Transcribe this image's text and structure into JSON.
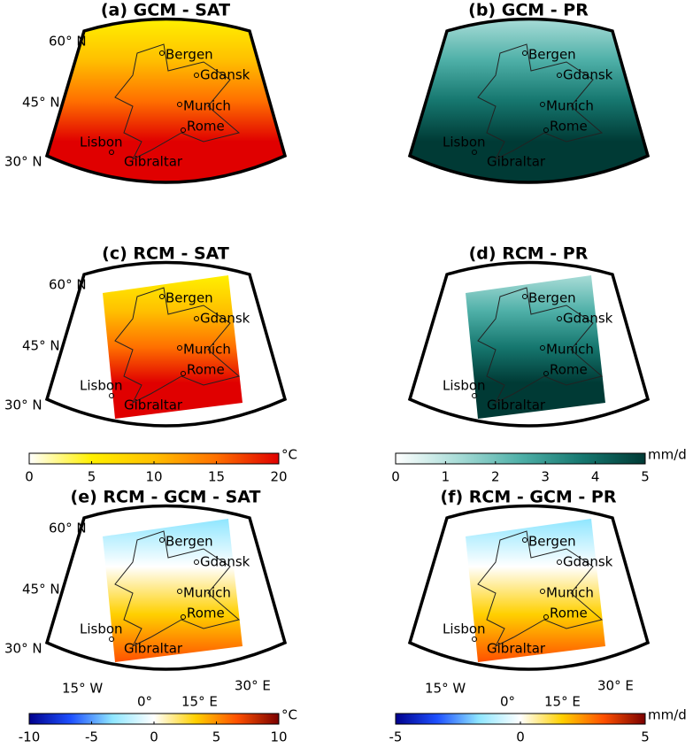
{
  "panels": [
    {
      "title": "(a) GCM - SAT",
      "colorbar": 0
    },
    {
      "title": "(b) GCM - PR",
      "colorbar": 1
    },
    {
      "title": "(c) RCM - SAT",
      "colorbar": 0
    },
    {
      "title": "(d) RCM - PR",
      "colorbar": 1
    },
    {
      "title": "(e) RCM - GCM - SAT",
      "colorbar": 2
    },
    {
      "title": "(f) RCM - GCM - PR",
      "colorbar": 3
    }
  ],
  "cities": [
    "Bergen",
    "Gdansk",
    "Munich",
    "Rome",
    "Lisbon",
    "Gibraltar"
  ],
  "lat_labels": [
    "60° N",
    "45° N",
    "30° N"
  ],
  "lon_labels": [
    "15° W",
    "0°",
    "15° E",
    "30° E"
  ],
  "colorbars": [
    {
      "unit": "°C",
      "range": [
        0,
        20
      ],
      "ticks": [
        0,
        5,
        10,
        15,
        20
      ],
      "colors": [
        "#ffffff",
        "#fff000",
        "#ffc000",
        "#ff7000",
        "#e00000"
      ]
    },
    {
      "unit": "mm/d",
      "range": [
        0,
        5
      ],
      "ticks": [
        0,
        1,
        2,
        3,
        4,
        5
      ],
      "colors": [
        "#ffffff",
        "#a8dcd7",
        "#4fb0a8",
        "#16776f",
        "#003a35"
      ]
    },
    {
      "unit": "°C",
      "range": [
        -10,
        10
      ],
      "ticks": [
        -10,
        -5,
        0,
        5,
        10
      ],
      "colors": [
        "#00008c",
        "#1e50ff",
        "#8fe6ff",
        "#ffffff",
        "#ffd000",
        "#ff5000",
        "#7a0000"
      ]
    },
    {
      "unit": "mm/d",
      "range": [
        -5,
        5
      ],
      "ticks": [
        -5,
        0,
        5
      ],
      "colors": [
        "#00008c",
        "#1e50ff",
        "#8fe6ff",
        "#ffffff",
        "#ffd000",
        "#ff5000",
        "#7a0000"
      ]
    }
  ]
}
